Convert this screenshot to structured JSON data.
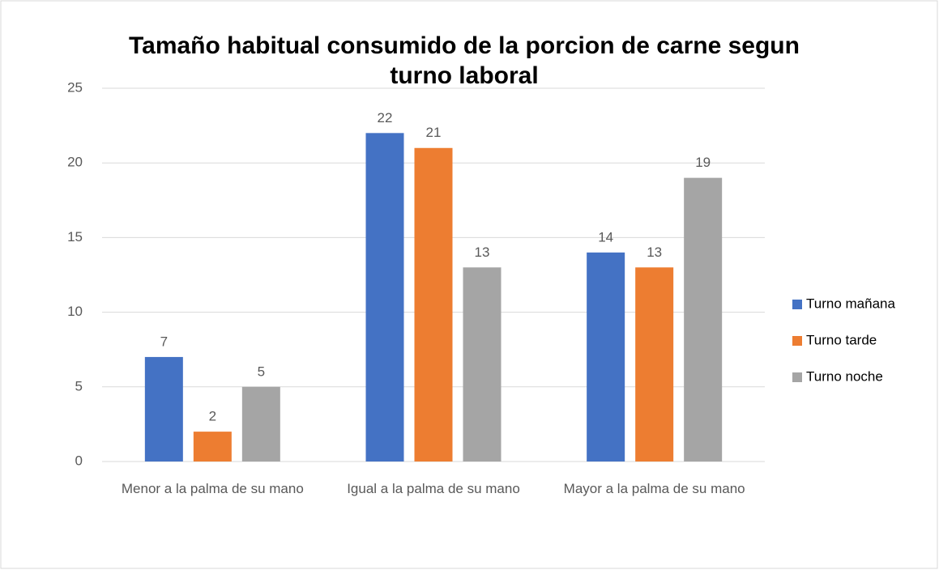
{
  "chart_data": {
    "type": "bar",
    "title": "Tamaño habitual consumido de la porcion de carne segun turno laboral",
    "categories": [
      "Menor a la palma de su mano",
      "Igual a la palma de su mano",
      "Mayor a la palma de su mano"
    ],
    "series": [
      {
        "name": "Turno mañana",
        "color": "#4472c4",
        "values": [
          7,
          22,
          14
        ]
      },
      {
        "name": "Turno tarde",
        "color": "#ed7d31",
        "values": [
          2,
          21,
          13
        ]
      },
      {
        "name": "Turno noche",
        "color": "#a5a5a5",
        "values": [
          5,
          13,
          19
        ]
      }
    ],
    "ylim": [
      0,
      25
    ],
    "yticks": [
      0,
      5,
      10,
      15,
      20,
      25
    ],
    "grid": true,
    "legend": "right"
  }
}
